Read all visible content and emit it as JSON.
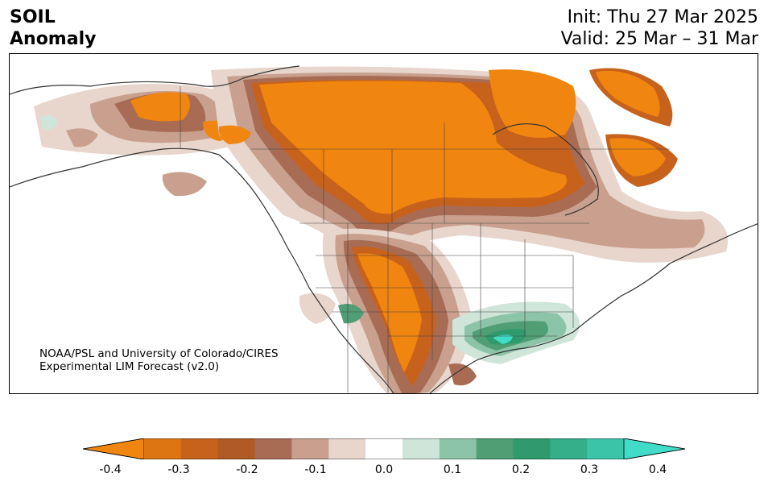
{
  "header": {
    "variable_line1": "SOIL",
    "variable_line2": "Anomaly",
    "init": "Init: Thu 27 Mar 2025",
    "valid": "Valid: 25 Mar – 31 Mar"
  },
  "credit": {
    "line1": "NOAA/PSL and University of Colorado/CIRES",
    "line2": "Experimental LIM Forecast (v2.0)"
  },
  "colorbar": {
    "ticks": [
      "-0.4",
      "-0.3",
      "-0.2",
      "-0.1",
      "0.0",
      "0.1",
      "0.2",
      "0.3",
      "0.4"
    ],
    "levels": [
      -0.4,
      -0.35,
      -0.3,
      -0.25,
      -0.2,
      -0.15,
      -0.1,
      -0.05,
      0.05,
      0.1,
      0.15,
      0.2,
      0.25,
      0.3,
      0.35,
      0.4
    ],
    "colors": [
      "#f0850f",
      "#dc7512",
      "#c7621c",
      "#b05a25",
      "#a86c55",
      "#c8a08d",
      "#e8d5cc",
      "#ffffff",
      "#cfe5da",
      "#8cc4a8",
      "#4f9e74",
      "#2f9a6c",
      "#35ae8a",
      "#3bc4a8",
      "#40dcc8"
    ],
    "extend": "both"
  },
  "map": {
    "colors": {
      "dry_strong": "#f0850f",
      "dry_mid": "#c7621c",
      "dry_brown": "#a86c55",
      "dry_light": "#c8a08d",
      "dry_faint": "#e8d5cc",
      "wet_faint": "#cfe5da",
      "wet_light": "#8cc4a8",
      "wet_mid": "#4f9e74",
      "wet_strong": "#2f9a6c",
      "wet_max": "#40dcc8",
      "coast": "#333333"
    }
  }
}
